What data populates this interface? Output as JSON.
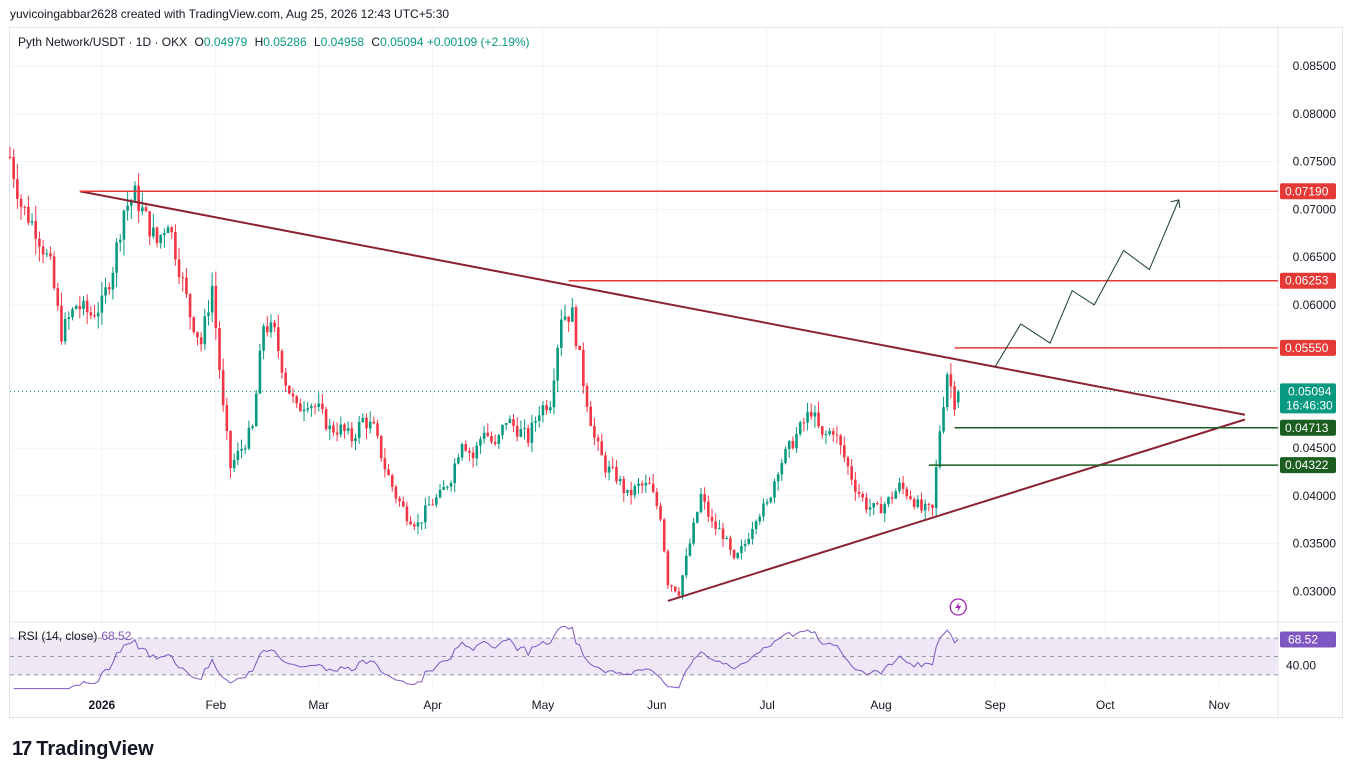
{
  "header_text": "yuvicoingabbar2628 created with TradingView.com, Aug 25, 2026 12:43 UTC+5:30",
  "legend": {
    "symbol": "Pyth Network/USDT · 1D · OKX",
    "open_label": "O",
    "open": "0.04979",
    "high_label": "H",
    "high": "0.05286",
    "low_label": "L",
    "low": "0.04958",
    "close_label": "C",
    "close": "0.05094",
    "change": "+0.00109 (+2.19%)"
  },
  "rsi_legend": {
    "label": "RSI (14, close)",
    "value": "68.52"
  },
  "brand": {
    "logo": "17",
    "name": "TradingView"
  },
  "colors": {
    "up": "#089981",
    "down": "#f23645",
    "trend": "#8b2231",
    "resistance": "#e53935",
    "support": "#1b5e20",
    "rsi": "#7e57c2",
    "rsi_band": "#ede7f6"
  },
  "chart_data": {
    "type": "candlestick",
    "ylim": [
      0.027,
      0.089
    ],
    "y_ticks": [
      "0.03000",
      "0.03500",
      "0.04000",
      "0.04500",
      "0.06000",
      "0.06500",
      "0.07000",
      "0.07500",
      "0.08000",
      "0.08500"
    ],
    "x_ticks": [
      {
        "label": "2026",
        "day": 0
      },
      {
        "label": "Feb",
        "day": 31
      },
      {
        "label": "Mar",
        "day": 59
      },
      {
        "label": "Apr",
        "day": 90
      },
      {
        "label": "May",
        "day": 120
      },
      {
        "label": "Jun",
        "day": 151
      },
      {
        "label": "Jul",
        "day": 181
      },
      {
        "label": "Aug",
        "day": 212
      },
      {
        "label": "Sep",
        "day": 243
      },
      {
        "label": "Oct",
        "day": 273
      },
      {
        "label": "Nov",
        "day": 304
      }
    ],
    "x_day_range": [
      -25,
      320
    ],
    "close_path": [
      [
        -25,
        0.0755
      ],
      [
        -22,
        0.0705
      ],
      [
        -18,
        0.068
      ],
      [
        -14,
        0.064
      ],
      [
        -11,
        0.057
      ],
      [
        -7,
        0.06
      ],
      [
        -3,
        0.059
      ],
      [
        0,
        0.06
      ],
      [
        3,
        0.064
      ],
      [
        6,
        0.07
      ],
      [
        9,
        0.0715
      ],
      [
        12,
        0.069
      ],
      [
        15,
        0.0665
      ],
      [
        18,
        0.069
      ],
      [
        21,
        0.064
      ],
      [
        24,
        0.059
      ],
      [
        27,
        0.056
      ],
      [
        30,
        0.062
      ],
      [
        33,
        0.049
      ],
      [
        35,
        0.043
      ],
      [
        38,
        0.045
      ],
      [
        41,
        0.047
      ],
      [
        44,
        0.058
      ],
      [
        47,
        0.057
      ],
      [
        50,
        0.052
      ],
      [
        53,
        0.049
      ],
      [
        56,
        0.05
      ],
      [
        59,
        0.049
      ],
      [
        62,
        0.047
      ],
      [
        65,
        0.047
      ],
      [
        68,
        0.046
      ],
      [
        71,
        0.048
      ],
      [
        74,
        0.047
      ],
      [
        77,
        0.043
      ],
      [
        80,
        0.04
      ],
      [
        83,
        0.038
      ],
      [
        86,
        0.037
      ],
      [
        89,
        0.039
      ],
      [
        92,
        0.04
      ],
      [
        95,
        0.042
      ],
      [
        98,
        0.046
      ],
      [
        101,
        0.044
      ],
      [
        104,
        0.047
      ],
      [
        107,
        0.045
      ],
      [
        110,
        0.048
      ],
      [
        113,
        0.047
      ],
      [
        116,
        0.046
      ],
      [
        119,
        0.049
      ],
      [
        122,
        0.05
      ],
      [
        125,
        0.059
      ],
      [
        128,
        0.059
      ],
      [
        131,
        0.052
      ],
      [
        134,
        0.046
      ],
      [
        137,
        0.043
      ],
      [
        140,
        0.042
      ],
      [
        143,
        0.04
      ],
      [
        146,
        0.041
      ],
      [
        149,
        0.041
      ],
      [
        152,
        0.038
      ],
      [
        154,
        0.031
      ],
      [
        157,
        0.03
      ],
      [
        160,
        0.035
      ],
      [
        163,
        0.04
      ],
      [
        166,
        0.037
      ],
      [
        169,
        0.036
      ],
      [
        172,
        0.033
      ],
      [
        175,
        0.035
      ],
      [
        178,
        0.038
      ],
      [
        181,
        0.039
      ],
      [
        184,
        0.043
      ],
      [
        187,
        0.045
      ],
      [
        190,
        0.047
      ],
      [
        193,
        0.049
      ],
      [
        196,
        0.046
      ],
      [
        199,
        0.047
      ],
      [
        202,
        0.044
      ],
      [
        205,
        0.041
      ],
      [
        208,
        0.039
      ],
      [
        211,
        0.0385
      ],
      [
        214,
        0.0395
      ],
      [
        217,
        0.041
      ],
      [
        220,
        0.04
      ],
      [
        223,
        0.0385
      ],
      [
        226,
        0.0385
      ],
      [
        228,
        0.047
      ],
      [
        230,
        0.053
      ],
      [
        232,
        0.0499
      ],
      [
        233,
        0.0509
      ]
    ],
    "rsi_value": 68.52,
    "rsi_levels": [
      70,
      50,
      30
    ],
    "rsi_ticks": [
      "40.00"
    ],
    "horizontal_levels": [
      {
        "value": 0.0719,
        "label": "0.07190",
        "kind": "resistance",
        "from_day": -6
      },
      {
        "value": 0.06253,
        "label": "0.06253",
        "kind": "resistance",
        "from_day": 127
      },
      {
        "value": 0.0555,
        "label": "0.05550",
        "kind": "resistance",
        "from_day": 232
      },
      {
        "value": 0.04713,
        "label": "0.04713",
        "kind": "support",
        "from_day": 232
      },
      {
        "value": 0.04322,
        "label": "0.04322",
        "kind": "support",
        "from_day": 225
      }
    ],
    "trendlines": [
      {
        "from": [
          -6,
          0.0719
        ],
        "to": [
          311,
          0.0485
        ],
        "kind": "descending"
      },
      {
        "from": [
          154,
          0.029
        ],
        "to": [
          311,
          0.048
        ],
        "kind": "ascending"
      }
    ],
    "projection": [
      [
        243,
        0.0535
      ],
      [
        250,
        0.058
      ],
      [
        258,
        0.056
      ],
      [
        264,
        0.0615
      ],
      [
        270,
        0.06
      ],
      [
        278,
        0.0657
      ],
      [
        285,
        0.0637
      ],
      [
        293,
        0.071
      ]
    ],
    "last_price": {
      "value": "0.05094",
      "countdown": "16:46:30"
    }
  }
}
